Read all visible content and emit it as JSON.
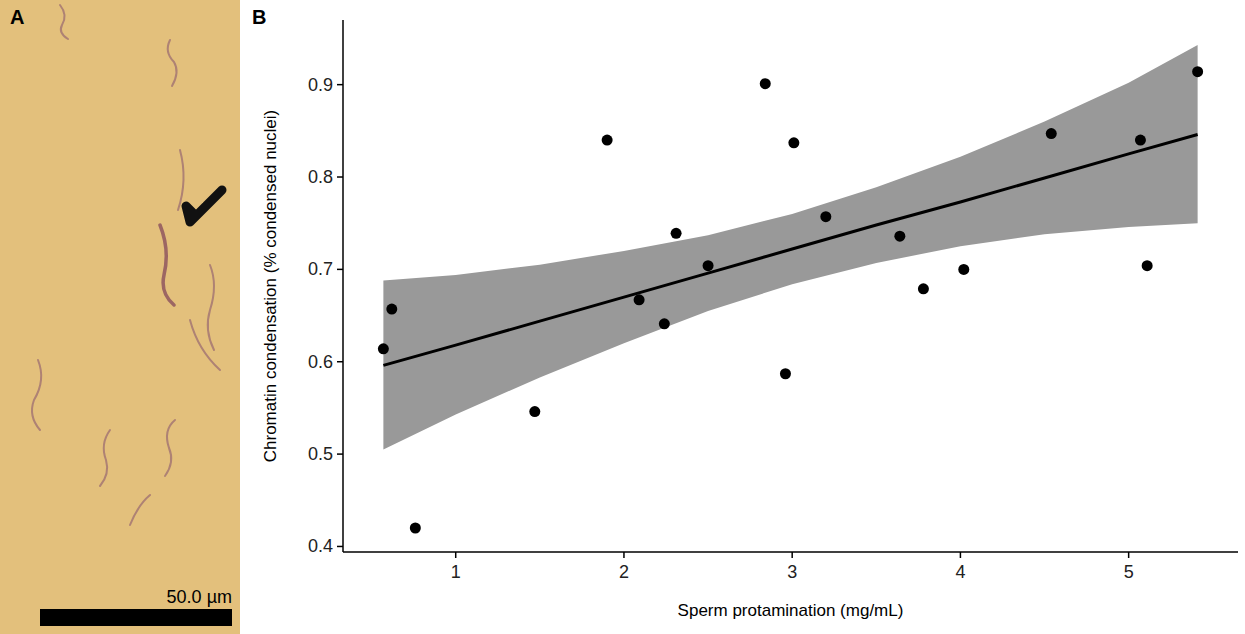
{
  "image_panel": {
    "panel": "A",
    "scale_bar": "50.0 µm"
  },
  "chart_data": {
    "type": "scatter",
    "panel": "B",
    "x_label": "Sperm protamination (mg/mL)",
    "y_label": "Chromatin condensation (% condensed nuclei)",
    "xlim": [
      0.33,
      5.65
    ],
    "ylim": [
      0.394,
      0.97
    ],
    "xticks": [
      1,
      2,
      3,
      4,
      5
    ],
    "yticks": [
      0.4,
      0.5,
      0.6,
      0.7,
      0.8,
      0.9
    ],
    "grid": false,
    "series": [
      {
        "type": "scatter",
        "color": "#000000",
        "marker": "circle",
        "x": [
          0.57,
          0.62,
          0.76,
          1.47,
          1.9,
          2.09,
          2.31,
          2.24,
          2.5,
          2.84,
          2.96,
          3.01,
          3.2,
          3.64,
          3.78,
          4.02,
          4.54,
          5.07,
          5.11,
          5.41
        ],
        "values": [
          0.614,
          0.657,
          0.42,
          0.546,
          0.84,
          0.667,
          0.739,
          0.641,
          0.704,
          0.901,
          0.587,
          0.837,
          0.757,
          0.736,
          0.679,
          0.7,
          0.847,
          0.84,
          0.704,
          0.914
        ]
      },
      {
        "type": "line",
        "color": "#000000",
        "line_style": "solid",
        "x": [
          0.57,
          1,
          1.5,
          2,
          2.5,
          3,
          3.5,
          4,
          4.5,
          5,
          5.41
        ],
        "values": [
          0.596,
          0.618,
          0.644,
          0.67,
          0.696,
          0.722,
          0.748,
          0.773,
          0.799,
          0.825,
          0.846
        ],
        "lower": [
          0.505,
          0.543,
          0.583,
          0.62,
          0.655,
          0.684,
          0.707,
          0.725,
          0.738,
          0.746,
          0.75
        ],
        "upper": [
          0.688,
          0.694,
          0.705,
          0.72,
          0.737,
          0.76,
          0.789,
          0.822,
          0.86,
          0.902,
          0.943
        ]
      }
    ]
  }
}
